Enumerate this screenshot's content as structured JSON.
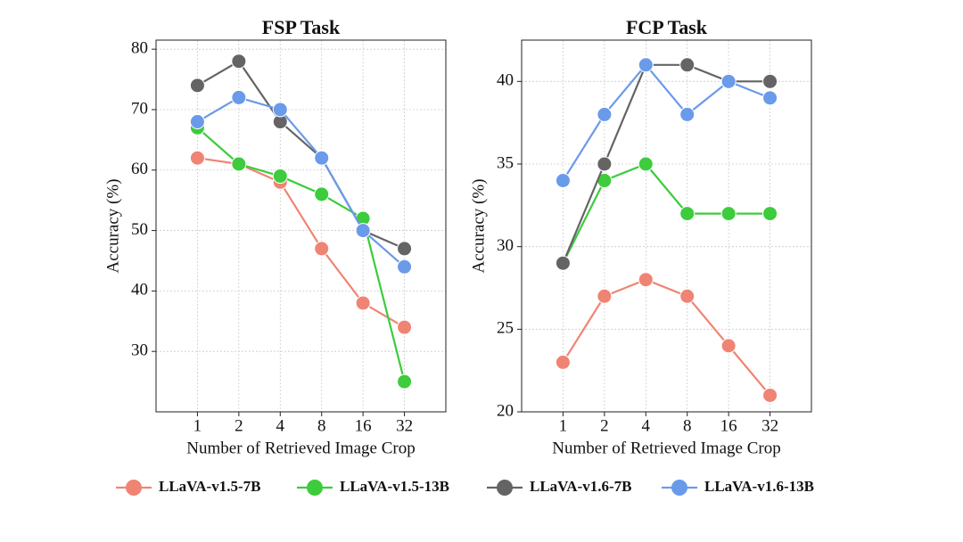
{
  "chart_data": [
    {
      "type": "line",
      "title": "FSP Task",
      "xlabel": "Number of Retrieved Image Crop",
      "ylabel": "Accuracy (%)",
      "categories": [
        "1",
        "2",
        "4",
        "8",
        "16",
        "32"
      ],
      "ylim": [
        20,
        81.5
      ],
      "yticks": [
        30,
        40,
        50,
        60,
        70,
        80
      ],
      "grid": true,
      "series": [
        {
          "name": "LLaVA-v1.5-7B",
          "color": "#f08474",
          "values": [
            62,
            61,
            58,
            47,
            38,
            34
          ]
        },
        {
          "name": "LLaVA-v1.5-13B",
          "color": "#3ccc3c",
          "values": [
            67,
            61,
            59,
            56,
            52,
            25
          ]
        },
        {
          "name": "LLaVA-v1.6-7B",
          "color": "#646464",
          "values": [
            74,
            78,
            68,
            62,
            50,
            47
          ]
        },
        {
          "name": "LLaVA-v1.6-13B",
          "color": "#6a9aea",
          "values": [
            68,
            72,
            70,
            62,
            50,
            44
          ]
        }
      ]
    },
    {
      "type": "line",
      "title": "FCP Task",
      "xlabel": "Number of Retrieved Image Crop",
      "ylabel": "Accuracy (%)",
      "categories": [
        "1",
        "2",
        "4",
        "8",
        "16",
        "32"
      ],
      "ylim": [
        20,
        42.5
      ],
      "yticks": [
        20,
        25,
        30,
        35,
        40
      ],
      "grid": true,
      "series": [
        {
          "name": "LLaVA-v1.5-7B",
          "color": "#f08474",
          "values": [
            23,
            27,
            28,
            27,
            24,
            21
          ]
        },
        {
          "name": "LLaVA-v1.5-13B",
          "color": "#3ccc3c",
          "values": [
            29,
            34,
            35,
            32,
            32,
            32
          ]
        },
        {
          "name": "LLaVA-v1.6-7B",
          "color": "#646464",
          "values": [
            29,
            35,
            41,
            41,
            40,
            40
          ]
        },
        {
          "name": "LLaVA-v1.6-13B",
          "color": "#6a9aea",
          "values": [
            34,
            38,
            41,
            38,
            40,
            39
          ]
        }
      ]
    }
  ]
}
